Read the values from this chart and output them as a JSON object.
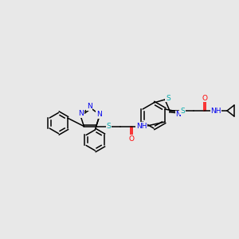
{
  "background_color": "#e8e8e8",
  "atom_colors": {
    "C": "#000000",
    "N": "#0000ee",
    "S": "#00aaaa",
    "O": "#ff0000",
    "H": "#000000"
  },
  "bond_color": "#000000",
  "font_size": 6.5,
  "fig_width": 3.0,
  "fig_height": 3.0,
  "dpi": 100
}
